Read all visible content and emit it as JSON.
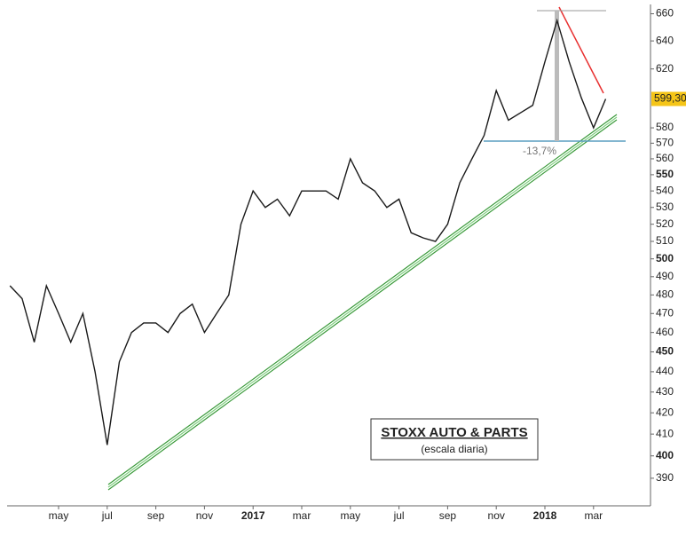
{
  "chart_data": {
    "type": "line",
    "title": "STOXX AUTO & PARTS",
    "subtitle": "(escala diaria)",
    "annotations": [
      "-13,7%"
    ],
    "last_price": {
      "value": 599.3,
      "label": "599,30"
    },
    "categories": [
      null,
      null,
      null,
      null,
      "may",
      null,
      null,
      null,
      "jul",
      null,
      null,
      null,
      "sep",
      null,
      null,
      null,
      "nov",
      null,
      null,
      null,
      "2017",
      null,
      null,
      null,
      "mar",
      null,
      null,
      null,
      "may",
      null,
      null,
      null,
      "jul",
      null,
      null,
      null,
      "sep",
      null,
      null,
      null,
      "nov",
      null,
      null,
      null,
      "2018",
      null,
      null,
      null,
      "mar",
      null
    ],
    "series": [
      {
        "name": "STOXX Auto & Parts",
        "color": "#1a1a1a",
        "values": [
          485,
          478,
          455,
          485,
          470,
          455,
          470,
          440,
          405,
          445,
          460,
          465,
          465,
          460,
          470,
          475,
          460,
          470,
          480,
          520,
          540,
          530,
          535,
          525,
          540,
          540,
          540,
          535,
          560,
          545,
          540,
          530,
          535,
          515,
          512,
          510,
          520,
          545,
          560,
          575,
          605,
          585,
          590,
          595,
          625,
          655,
          625,
          600,
          580,
          599.3
        ]
      }
    ],
    "log_scale": true,
    "ylim": [
      378,
      667
    ],
    "yticks": [
      390,
      400,
      410,
      420,
      430,
      440,
      450,
      460,
      470,
      480,
      490,
      500,
      510,
      520,
      530,
      540,
      550,
      560,
      570,
      580,
      620,
      640,
      660
    ],
    "grid": false
  }
}
